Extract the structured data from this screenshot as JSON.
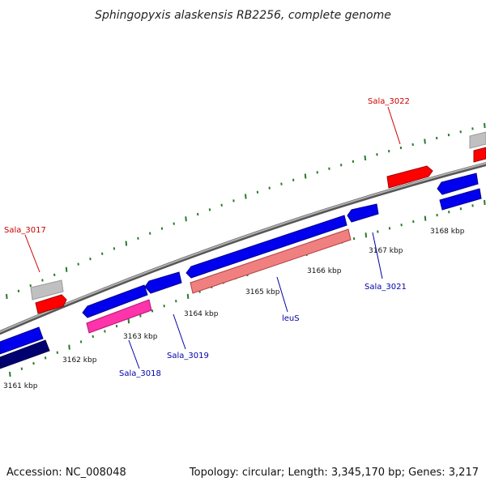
{
  "title": "Sphingopyxis alaskensis RB2256, complete genome",
  "footer": {
    "accession": "Accession: NC_008048",
    "stats": "Topology: circular; Length: 3,345,170 bp; Genes: 3,217"
  },
  "ticks": [
    "3161 kbp",
    "3162 kbp",
    "3163 kbp",
    "3164 kbp",
    "3165 kbp",
    "3166 kbp",
    "3167 kbp",
    "3168 kbp"
  ],
  "gene_labels": [
    {
      "name": "sala-3017-label",
      "text": "Sala_3017",
      "color": "#cc0000"
    },
    {
      "name": "sala-3022-label",
      "text": "Sala_3022",
      "color": "#cc0000"
    },
    {
      "name": "sala-3018-label",
      "text": "Sala_3018",
      "color": "#0000aa"
    },
    {
      "name": "sala-3019-label",
      "text": "Sala_3019",
      "color": "#0000aa"
    },
    {
      "name": "leus-label",
      "text": "leuS",
      "color": "#0000aa"
    },
    {
      "name": "sala-3021-label",
      "text": "Sala_3021",
      "color": "#0000aa"
    }
  ],
  "colors": {
    "backbone": "#8a8a8a",
    "tick": "#2a7a2a",
    "forward_gene": "#ff0000",
    "reverse_gene": "#0000ee",
    "pseudo": "#c0c0c0",
    "rna_pink": "#ff33aa",
    "salmon": "#f08080",
    "navy": "#000070"
  }
}
